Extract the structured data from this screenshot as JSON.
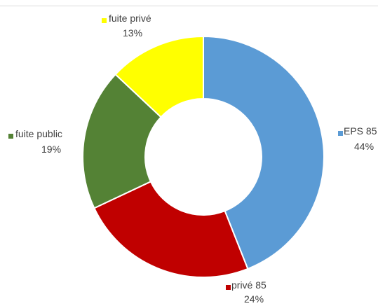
{
  "chart_data": {
    "type": "pie",
    "variant": "doughnut",
    "title": "",
    "slices": [
      {
        "name": "EPS 85",
        "percent_label": "44%",
        "value": 44,
        "color": "#5b9bd5"
      },
      {
        "name": "privé 85",
        "percent_label": "24%",
        "value": 24,
        "color": "#c00000"
      },
      {
        "name": "fuite public",
        "percent_label": "19%",
        "value": 19,
        "color": "#548235"
      },
      {
        "name": "fuite privé",
        "percent_label": "13%",
        "value": 13,
        "color": "#ffff00"
      }
    ],
    "legend": "labels placed beside slices with colored square markers"
  }
}
